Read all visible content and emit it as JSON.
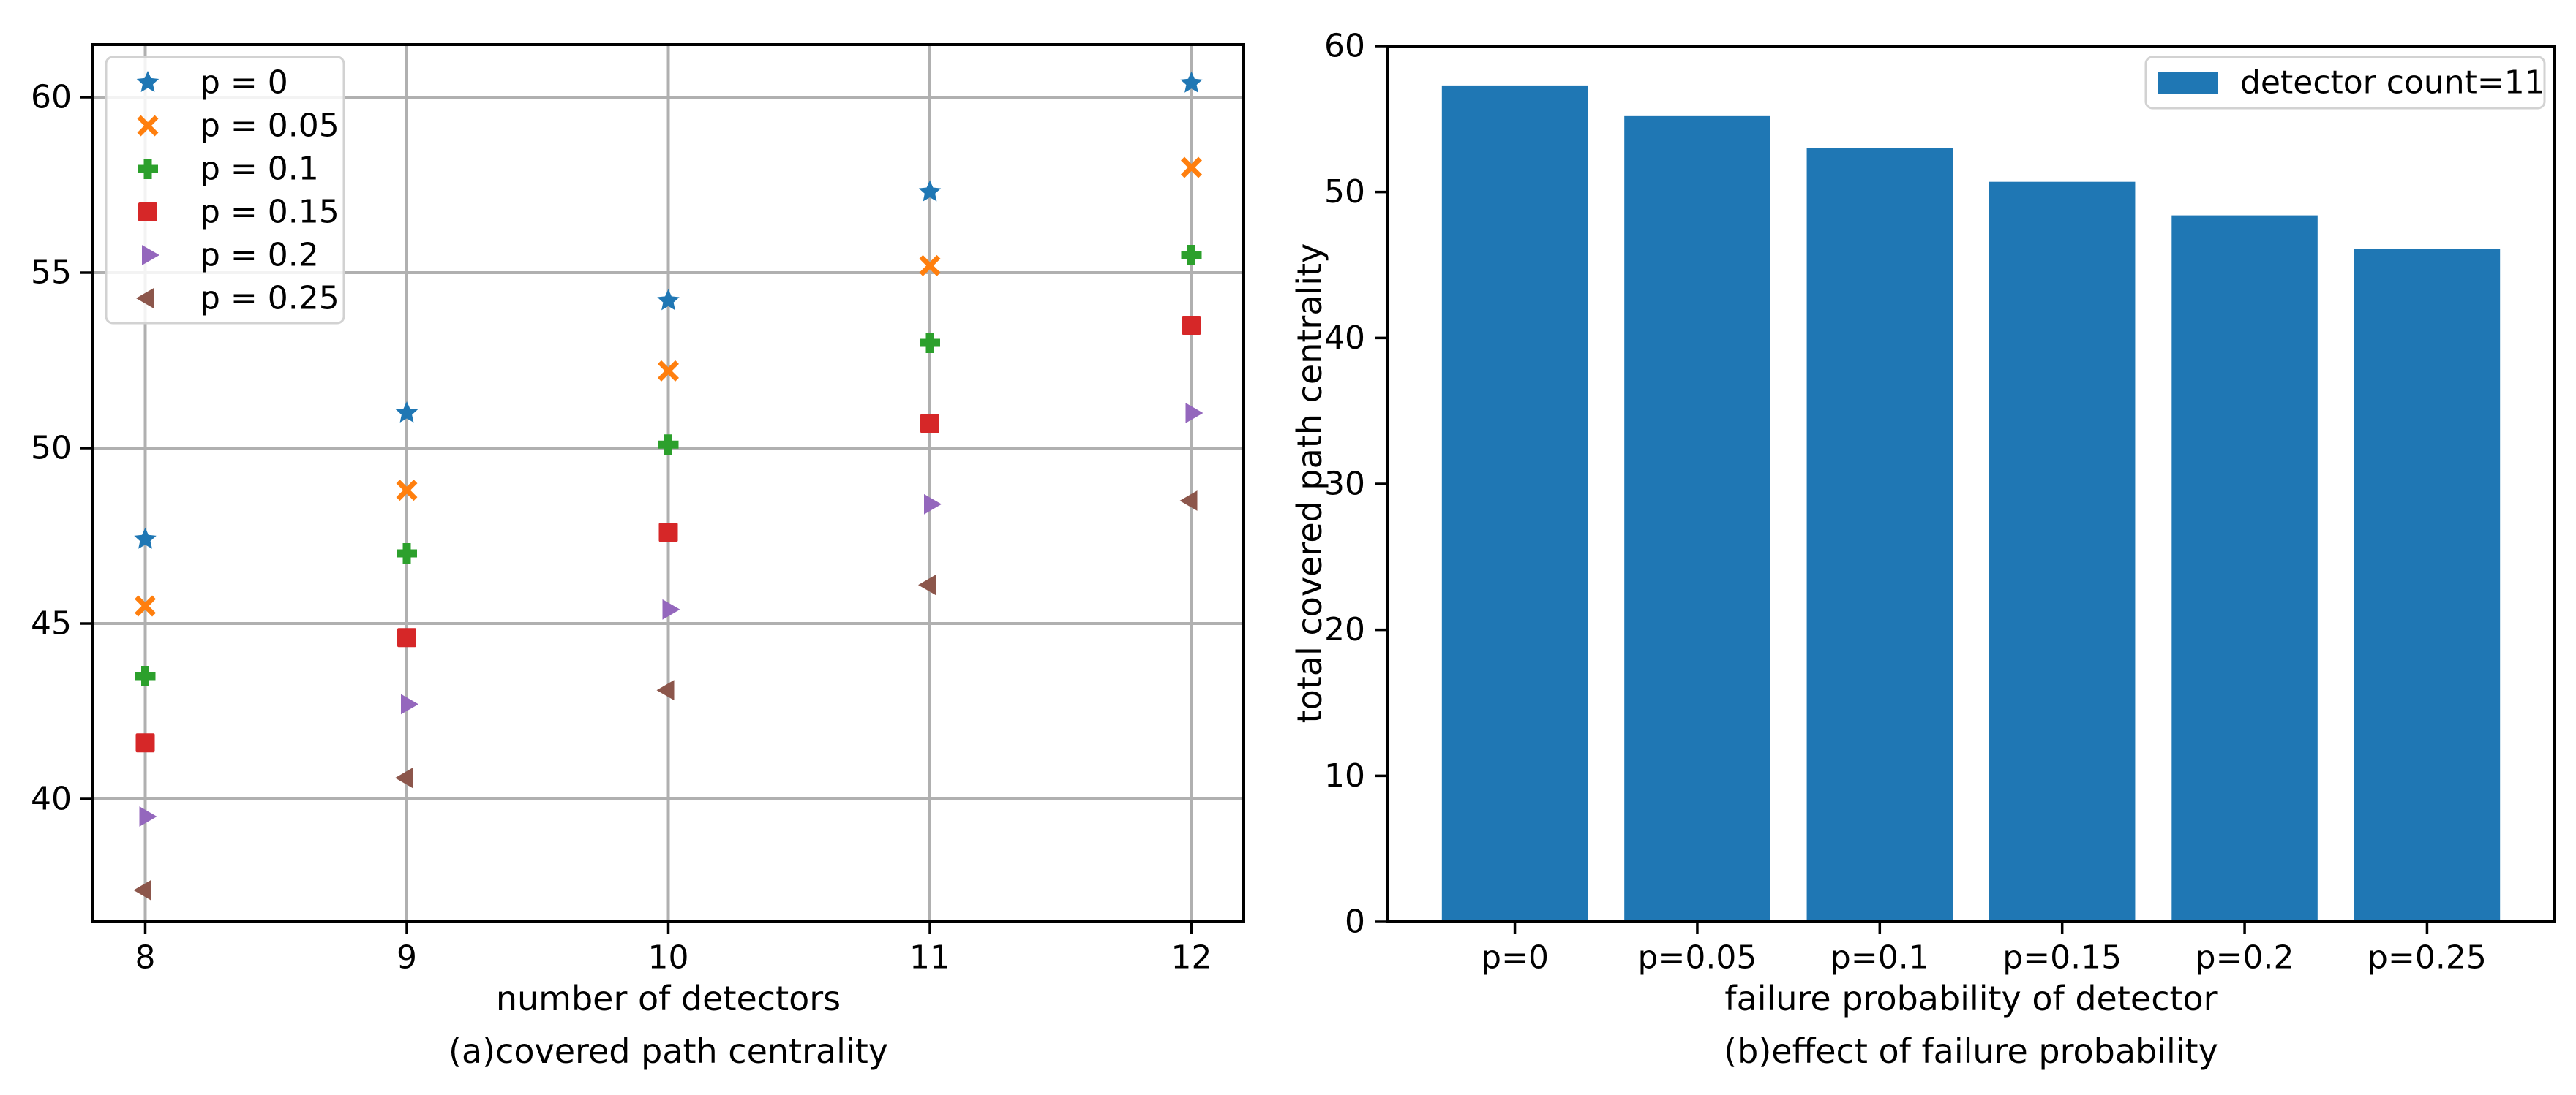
{
  "chart_data": [
    {
      "type": "scatter",
      "title": "(a)covered path centrality",
      "xlabel": "number of detectors",
      "ylabel": "",
      "x": [
        8,
        9,
        10,
        11,
        12
      ],
      "xticks": [
        8,
        9,
        10,
        11,
        12
      ],
      "yticks": [
        40,
        45,
        50,
        55,
        60
      ],
      "xlim": [
        7.8,
        12.2
      ],
      "ylim": [
        36.5,
        61.5
      ],
      "grid": true,
      "legend_position": "upper left",
      "series": [
        {
          "name": "p = 0",
          "marker": "star",
          "color": "#1f77b4",
          "values": [
            47.4,
            51.0,
            54.2,
            57.3,
            60.4
          ]
        },
        {
          "name": "p = 0.05",
          "marker": "x",
          "color": "#ff7f0e",
          "values": [
            45.5,
            48.8,
            52.2,
            55.2,
            58.0
          ]
        },
        {
          "name": "p = 0.1",
          "marker": "plus",
          "color": "#2ca02c",
          "values": [
            43.5,
            47.0,
            50.1,
            53.0,
            55.5
          ]
        },
        {
          "name": "p = 0.15",
          "marker": "square",
          "color": "#d62728",
          "values": [
            41.6,
            44.6,
            47.6,
            50.7,
            53.5
          ]
        },
        {
          "name": "p = 0.2",
          "marker": "triangle-right",
          "color": "#9467bd",
          "values": [
            39.5,
            42.7,
            45.4,
            48.4,
            51.0
          ]
        },
        {
          "name": "p = 0.25",
          "marker": "triangle-left",
          "color": "#8c564b",
          "values": [
            37.4,
            40.6,
            43.1,
            46.1,
            48.5
          ]
        }
      ]
    },
    {
      "type": "bar",
      "title": "(b)effect of failure probability",
      "xlabel": "failure probability of detector",
      "ylabel": "total covered path centrality",
      "categories": [
        "p=0",
        "p=0.05",
        "p=0.1",
        "p=0.15",
        "p=0.2",
        "p=0.25"
      ],
      "values": [
        57.3,
        55.2,
        53.0,
        50.7,
        48.4,
        46.1
      ],
      "legend_label": "detector count=11",
      "bar_color": "#1f77b4",
      "yticks": [
        0,
        10,
        20,
        30,
        40,
        50,
        60
      ],
      "ylim": [
        0,
        60
      ],
      "grid": false,
      "legend_position": "upper right"
    }
  ],
  "style_colors": {
    "grid": "#b0b0b0",
    "spine": "#000000",
    "text": "#000000",
    "legend_edge": "#d2d2d2",
    "legend_face": "#ffffff"
  }
}
